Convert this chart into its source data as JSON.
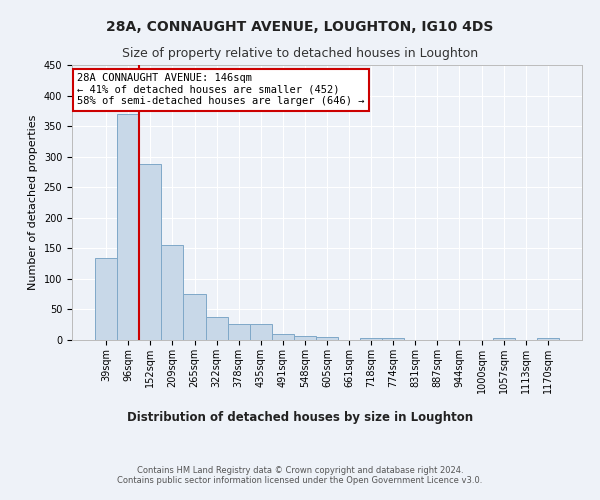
{
  "title": "28A, CONNAUGHT AVENUE, LOUGHTON, IG10 4DS",
  "subtitle": "Size of property relative to detached houses in Loughton",
  "xlabel": "Distribution of detached houses by size in Loughton",
  "ylabel": "Number of detached properties",
  "footer": "Contains HM Land Registry data © Crown copyright and database right 2024.\nContains public sector information licensed under the Open Government Licence v3.0.",
  "categories": [
    "39sqm",
    "96sqm",
    "152sqm",
    "209sqm",
    "265sqm",
    "322sqm",
    "378sqm",
    "435sqm",
    "491sqm",
    "548sqm",
    "605sqm",
    "661sqm",
    "718sqm",
    "774sqm",
    "831sqm",
    "887sqm",
    "944sqm",
    "1000sqm",
    "1057sqm",
    "1113sqm",
    "1170sqm"
  ],
  "values": [
    135,
    370,
    288,
    155,
    75,
    38,
    27,
    27,
    10,
    6,
    5,
    0,
    4,
    4,
    0,
    0,
    0,
    0,
    4,
    0,
    4
  ],
  "bar_color": "#c8d8e8",
  "bar_edge_color": "#7fa8c8",
  "vline_x": 1.5,
  "annotation_text": "28A CONNAUGHT AVENUE: 146sqm\n← 41% of detached houses are smaller (452)\n58% of semi-detached houses are larger (646) →",
  "annotation_box_color": "#ffffff",
  "annotation_box_edge": "#cc0000",
  "vline_color": "#cc0000",
  "background_color": "#eef2f8",
  "ylim": [
    0,
    450
  ],
  "yticks": [
    0,
    50,
    100,
    150,
    200,
    250,
    300,
    350,
    400,
    450
  ],
  "grid_color": "#ffffff",
  "title_fontsize": 10,
  "subtitle_fontsize": 9,
  "ylabel_fontsize": 8,
  "xlabel_fontsize": 8.5,
  "tick_fontsize": 7,
  "annotation_fontsize": 7.5,
  "footer_fontsize": 6
}
